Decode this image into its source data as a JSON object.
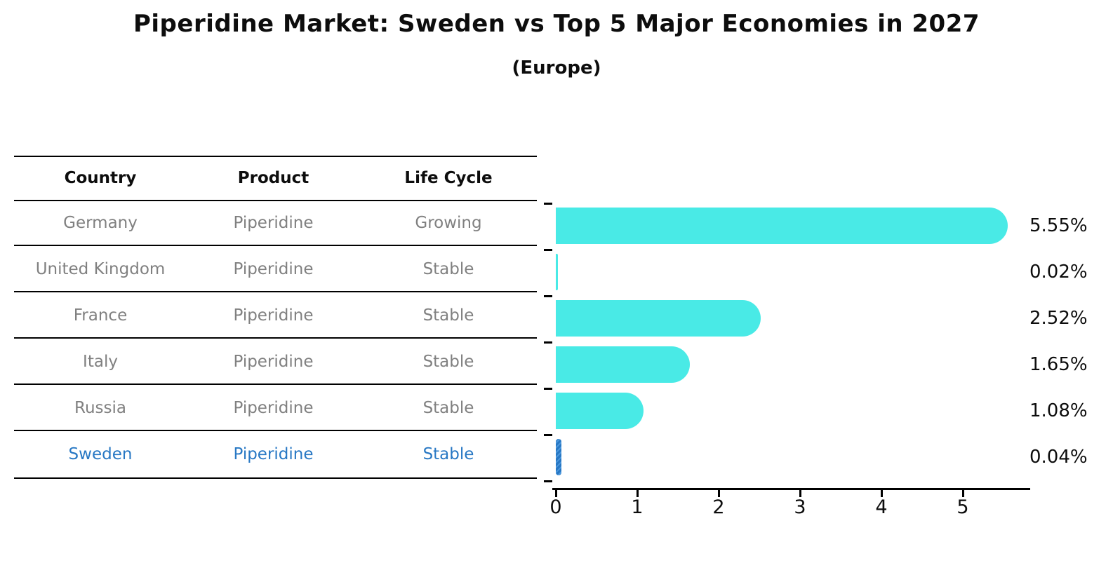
{
  "title": "Piperidine Market: Sweden vs Top 5 Major Economies in 2027",
  "subtitle": "(Europe)",
  "table": {
    "headers": [
      "Country",
      "Product",
      "Life Cycle"
    ],
    "rows": [
      {
        "country": "Germany",
        "product": "Piperidine",
        "life_cycle": "Growing",
        "highlight": false
      },
      {
        "country": "United Kingdom",
        "product": "Piperidine",
        "life_cycle": "Stable",
        "highlight": false
      },
      {
        "country": "France",
        "product": "Piperidine",
        "life_cycle": "Stable",
        "highlight": false
      },
      {
        "country": "Italy",
        "product": "Piperidine",
        "life_cycle": "Stable",
        "highlight": false
      },
      {
        "country": "Russia",
        "product": "Piperidine",
        "life_cycle": "Stable",
        "highlight": true
      }
    ],
    "highlight_row": {
      "country": "Sweden",
      "product": "Piperidine",
      "life_cycle": "Stable",
      "highlight": true
    }
  },
  "chart_data": {
    "type": "bar",
    "orientation": "horizontal",
    "categories": [
      "Germany",
      "United Kingdom",
      "France",
      "Italy",
      "Russia",
      "Sweden"
    ],
    "values": [
      5.55,
      0.02,
      2.52,
      1.65,
      1.08,
      0.04
    ],
    "value_labels": [
      "5.55%",
      "0.02%",
      "2.52%",
      "1.65%",
      "1.08%",
      "0.04%"
    ],
    "highlight_index": 5,
    "x_ticks": [
      0,
      1,
      2,
      3,
      4,
      5
    ],
    "xlim": [
      0,
      5.83
    ],
    "xlabel": "",
    "ylabel": "",
    "grid": false,
    "legend": false,
    "bar_color": "#49EAE6",
    "highlight_color": "#2878C4",
    "label_color": "#0d0d0d",
    "muted_text_color": "#808080"
  }
}
